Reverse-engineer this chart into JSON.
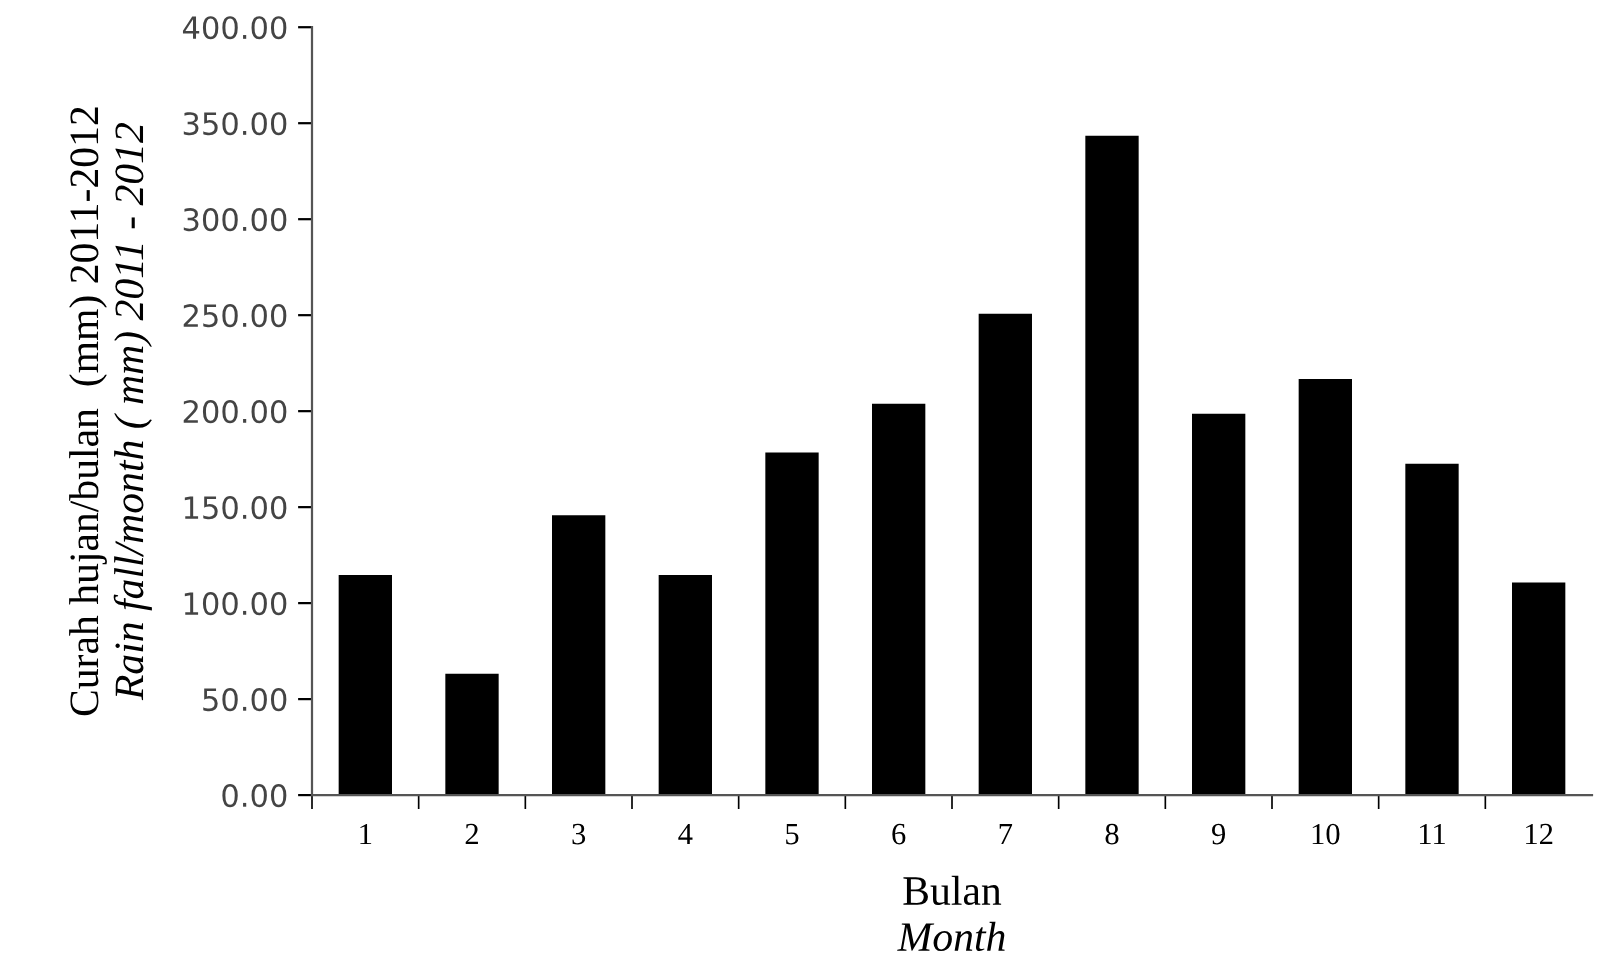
{
  "chart_data": {
    "type": "bar",
    "categories": [
      "1",
      "2",
      "3",
      "4",
      "5",
      "6",
      "7",
      "8",
      "9",
      "10",
      "11",
      "12"
    ],
    "values": [
      114.6,
      63.2,
      145.8,
      114.6,
      178.5,
      203.8,
      250.7,
      343.4,
      198.6,
      216.7,
      172.6,
      110.8
    ],
    "color": "#000000",
    "xlabel": "Bulan\nMonth",
    "ylabel": "Curah hujan/bulan  (mm) 2011-2012\nRain fall/month ( mm) 2011 - 2012",
    "ylim": [
      0,
      400
    ],
    "yticks": [
      {
        "value": 0,
        "label": "0.00"
      },
      {
        "value": 50,
        "label": "50.00"
      },
      {
        "value": 100,
        "label": "100.00"
      },
      {
        "value": 150,
        "label": "150.00"
      },
      {
        "value": 200,
        "label": "200.00"
      },
      {
        "value": 250,
        "label": "250.00"
      },
      {
        "value": 300,
        "label": "300.00"
      },
      {
        "value": 350,
        "label": "350.00"
      },
      {
        "value": 400,
        "label": "400.00"
      }
    ],
    "grid": false,
    "legend": false
  }
}
